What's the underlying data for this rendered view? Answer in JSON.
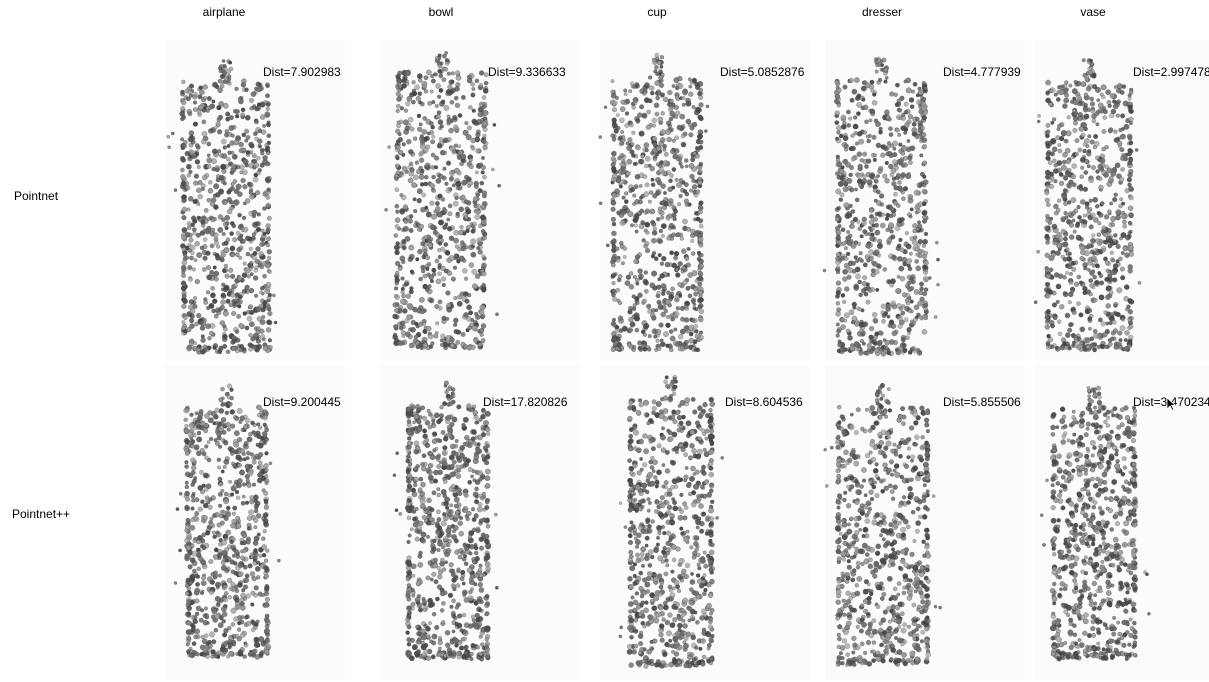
{
  "columns": [
    "airplane",
    "bowl",
    "cup",
    "dresser",
    "vase"
  ],
  "rows": [
    {
      "label": "Pointnet",
      "dists": [
        "Dist=7.902983",
        "Dist=9.336633",
        "Dist=5.0852876",
        "Dist=4.777939",
        "Dist=2.997478"
      ]
    },
    {
      "label": "Pointnet++",
      "dists": [
        "Dist=9.200445",
        "Dist=17.820826",
        "Dist=8.604536",
        "Dist=5.855506",
        "Dist=3.470234"
      ]
    }
  ],
  "colors": {
    "point_dark": "#4a4a4a",
    "point_mid": "#6e6e6e",
    "point_light": "#9a9a9a",
    "panel_bg": "#fbfbfb"
  },
  "icons": {
    "cursor": "mouse-pointer-icon"
  }
}
